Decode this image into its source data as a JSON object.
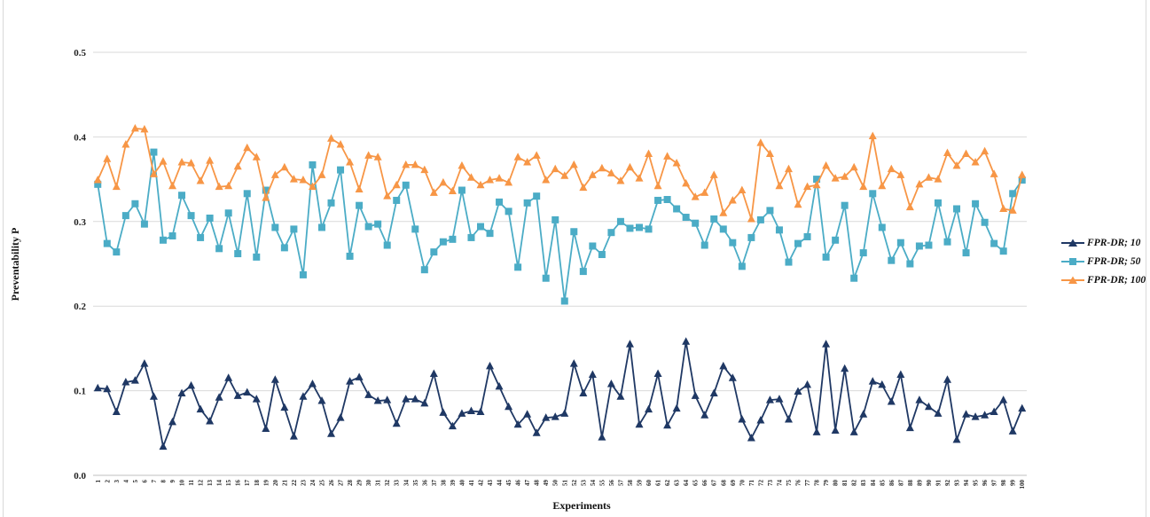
{
  "chart_data": {
    "type": "line",
    "title": "",
    "xlabel": "Experiments",
    "ylabel": "Preventability P",
    "ylim": [
      0.0,
      0.5
    ],
    "y_ticks": [
      "0.0",
      "0.1",
      "0.2",
      "0.3",
      "0.4",
      "0.5"
    ],
    "grid": "horizontal",
    "legend_position": "right",
    "categories": [
      "1",
      "2",
      "3",
      "4",
      "5",
      "6",
      "7",
      "8",
      "9",
      "10",
      "11",
      "12",
      "13",
      "14",
      "15",
      "16",
      "17",
      "18",
      "19",
      "20",
      "21",
      "22",
      "23",
      "24",
      "25",
      "26",
      "27",
      "28",
      "29",
      "30",
      "31",
      "32",
      "33",
      "34",
      "35",
      "36",
      "37",
      "38",
      "39",
      "40",
      "41",
      "42",
      "43",
      "44",
      "45",
      "46",
      "47",
      "48",
      "49",
      "50",
      "51",
      "52",
      "53",
      "54",
      "55",
      "56",
      "57",
      "58",
      "59",
      "60",
      "61",
      "62",
      "63",
      "64",
      "65",
      "66",
      "67",
      "68",
      "69",
      "70",
      "71",
      "72",
      "73",
      "74",
      "75",
      "76",
      "77",
      "78",
      "79",
      "80",
      "81",
      "82",
      "83",
      "84",
      "85",
      "86",
      "87",
      "88",
      "89",
      "90",
      "91",
      "92",
      "93",
      "94",
      "95",
      "96",
      "97",
      "98",
      "99",
      "100"
    ],
    "series": [
      {
        "name": "FPR-DR; 10",
        "color": "#1f3864",
        "marker": "triangle",
        "values": [
          0.103,
          0.102,
          0.075,
          0.11,
          0.112,
          0.132,
          0.093,
          0.034,
          0.063,
          0.097,
          0.106,
          0.078,
          0.064,
          0.092,
          0.115,
          0.094,
          0.098,
          0.09,
          0.055,
          0.113,
          0.08,
          0.046,
          0.093,
          0.108,
          0.088,
          0.049,
          0.068,
          0.111,
          0.116,
          0.095,
          0.088,
          0.089,
          0.061,
          0.09,
          0.09,
          0.085,
          0.12,
          0.074,
          0.058,
          0.073,
          0.076,
          0.075,
          0.129,
          0.105,
          0.081,
          0.06,
          0.072,
          0.05,
          0.068,
          0.069,
          0.073,
          0.132,
          0.097,
          0.119,
          0.045,
          0.108,
          0.093,
          0.155,
          0.06,
          0.078,
          0.12,
          0.059,
          0.079,
          0.158,
          0.094,
          0.071,
          0.097,
          0.129,
          0.115,
          0.066,
          0.044,
          0.065,
          0.089,
          0.09,
          0.066,
          0.099,
          0.107,
          0.051,
          0.155,
          0.053,
          0.126,
          0.051,
          0.072,
          0.111,
          0.107,
          0.087,
          0.119,
          0.056,
          0.089,
          0.081,
          0.073,
          0.113,
          0.042,
          0.072,
          0.069,
          0.071,
          0.075,
          0.089,
          0.052,
          0.079
        ]
      },
      {
        "name": "FPR-DR; 50",
        "color": "#4bacc6",
        "marker": "square",
        "values": [
          0.344,
          0.274,
          0.264,
          0.307,
          0.321,
          0.297,
          0.382,
          0.278,
          0.283,
          0.331,
          0.307,
          0.281,
          0.304,
          0.268,
          0.31,
          0.262,
          0.333,
          0.258,
          0.337,
          0.293,
          0.269,
          0.291,
          0.237,
          0.367,
          0.293,
          0.322,
          0.361,
          0.259,
          0.319,
          0.294,
          0.297,
          0.272,
          0.325,
          0.343,
          0.291,
          0.243,
          0.264,
          0.276,
          0.279,
          0.337,
          0.281,
          0.294,
          0.286,
          0.323,
          0.312,
          0.246,
          0.322,
          0.33,
          0.233,
          0.302,
          0.206,
          0.288,
          0.241,
          0.271,
          0.261,
          0.287,
          0.3,
          0.292,
          0.293,
          0.291,
          0.325,
          0.326,
          0.315,
          0.305,
          0.298,
          0.272,
          0.303,
          0.291,
          0.275,
          0.247,
          0.281,
          0.302,
          0.313,
          0.29,
          0.252,
          0.274,
          0.282,
          0.35,
          0.258,
          0.278,
          0.319,
          0.233,
          0.263,
          0.333,
          0.293,
          0.254,
          0.275,
          0.25,
          0.271,
          0.272,
          0.322,
          0.276,
          0.315,
          0.263,
          0.321,
          0.299,
          0.274,
          0.265,
          0.333,
          0.349
        ]
      },
      {
        "name": "FPR-DR; 100",
        "color": "#f79646",
        "marker": "triangle",
        "values": [
          0.349,
          0.374,
          0.341,
          0.391,
          0.41,
          0.409,
          0.356,
          0.371,
          0.342,
          0.37,
          0.369,
          0.348,
          0.372,
          0.341,
          0.342,
          0.365,
          0.387,
          0.376,
          0.328,
          0.355,
          0.364,
          0.35,
          0.349,
          0.341,
          0.355,
          0.398,
          0.391,
          0.37,
          0.338,
          0.378,
          0.376,
          0.33,
          0.343,
          0.367,
          0.367,
          0.361,
          0.334,
          0.346,
          0.336,
          0.366,
          0.352,
          0.343,
          0.349,
          0.351,
          0.346,
          0.376,
          0.37,
          0.378,
          0.349,
          0.362,
          0.354,
          0.367,
          0.34,
          0.355,
          0.363,
          0.357,
          0.348,
          0.364,
          0.351,
          0.38,
          0.342,
          0.377,
          0.369,
          0.345,
          0.329,
          0.334,
          0.355,
          0.31,
          0.325,
          0.337,
          0.303,
          0.393,
          0.38,
          0.342,
          0.362,
          0.32,
          0.341,
          0.343,
          0.366,
          0.351,
          0.353,
          0.364,
          0.341,
          0.401,
          0.342,
          0.362,
          0.355,
          0.317,
          0.344,
          0.352,
          0.35,
          0.381,
          0.366,
          0.38,
          0.37,
          0.383,
          0.356,
          0.315,
          0.313,
          0.355
        ]
      }
    ]
  }
}
